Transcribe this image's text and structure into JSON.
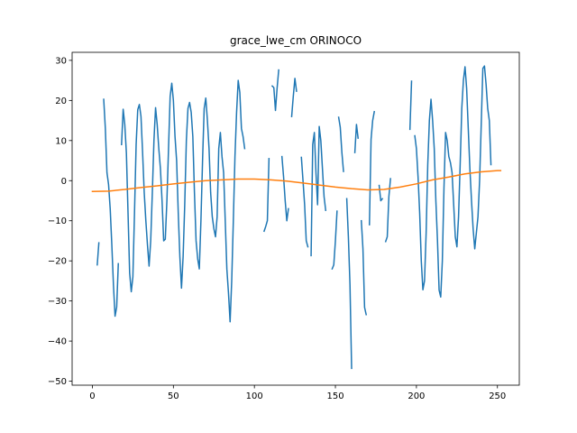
{
  "chart_data": {
    "type": "line",
    "title": "grace_lwe_cm ORINOCO",
    "xlabel": "",
    "ylabel": "",
    "xlim": [
      -12.5,
      263.5
    ],
    "ylim": [
      -51,
      32
    ],
    "xticks": [
      0,
      50,
      100,
      150,
      200,
      250
    ],
    "yticks": [
      -50,
      -40,
      -30,
      -20,
      -10,
      0,
      10,
      20,
      30
    ],
    "grid": false,
    "legend": "none",
    "series": [
      {
        "color": "#1f77b4",
        "segments": [
          [
            [
              3,
              -21
            ],
            [
              4,
              -15.5
            ]
          ],
          [
            [
              7,
              20.3
            ],
            [
              8,
              13
            ],
            [
              9,
              2
            ],
            [
              10,
              -1
            ],
            [
              11,
              -7
            ],
            [
              12,
              -16
            ],
            [
              13,
              -26
            ],
            [
              14,
              -33.8
            ],
            [
              15,
              -31.5
            ],
            [
              16,
              -20.7
            ]
          ],
          [
            [
              18,
              9
            ],
            [
              19,
              17.8
            ],
            [
              20,
              14
            ],
            [
              21,
              6.8
            ],
            [
              22,
              -8
            ],
            [
              23,
              -23
            ],
            [
              24,
              -27.7
            ],
            [
              25,
              -24
            ],
            [
              26,
              -8
            ],
            [
              27,
              9
            ],
            [
              28,
              17.7
            ],
            [
              29,
              19
            ],
            [
              30,
              16
            ],
            [
              31,
              7
            ],
            [
              32,
              -3
            ],
            [
              33,
              -10
            ],
            [
              34,
              -16
            ],
            [
              35,
              -21.3
            ],
            [
              36,
              -15
            ],
            [
              37,
              -3
            ],
            [
              38,
              10
            ],
            [
              39,
              18.2
            ],
            [
              40,
              14
            ],
            [
              41,
              8
            ],
            [
              42,
              3
            ],
            [
              43,
              -5
            ],
            [
              44,
              -15
            ],
            [
              45,
              -14.6
            ],
            [
              46,
              -5
            ],
            [
              47,
              8
            ],
            [
              48,
              21
            ],
            [
              49,
              24.3
            ],
            [
              50,
              20
            ],
            [
              51,
              11
            ],
            [
              52,
              5
            ],
            [
              53,
              -8
            ],
            [
              54,
              -19
            ],
            [
              55,
              -26.8
            ],
            [
              56,
              -19
            ],
            [
              57,
              -6
            ],
            [
              58,
              10
            ],
            [
              59,
              18
            ],
            [
              60,
              19.5
            ],
            [
              61,
              17
            ],
            [
              62,
              11
            ],
            [
              63,
              -3
            ],
            [
              64,
              -15
            ],
            [
              65,
              -19.5
            ],
            [
              66,
              -22
            ],
            [
              67,
              -10
            ],
            [
              68,
              5
            ],
            [
              69,
              18
            ],
            [
              70,
              20.6
            ],
            [
              71,
              15
            ],
            [
              72,
              8
            ],
            [
              73,
              -3
            ],
            [
              74,
              -9
            ],
            [
              75,
              -12
            ],
            [
              76,
              -14
            ],
            [
              77,
              -9
            ],
            [
              78,
              8
            ],
            [
              79,
              12
            ],
            [
              80,
              6
            ],
            [
              81,
              2
            ],
            [
              82,
              -10
            ],
            [
              83,
              -22
            ],
            [
              84,
              -28
            ],
            [
              85,
              -35.2
            ],
            [
              86,
              -25
            ],
            [
              87,
              -10
            ],
            [
              88,
              6
            ],
            [
              89,
              17
            ],
            [
              90,
              25
            ],
            [
              91,
              22
            ],
            [
              92,
              13
            ],
            [
              93,
              11
            ],
            [
              94,
              8
            ]
          ],
          [
            [
              106,
              -12.6
            ],
            [
              107,
              -11.4
            ],
            [
              108,
              -10
            ],
            [
              109,
              5.5
            ]
          ],
          [
            [
              111,
              23.6
            ],
            [
              112,
              23.2
            ],
            [
              113,
              17.5
            ],
            [
              114,
              23
            ],
            [
              115,
              27.6
            ]
          ],
          [
            [
              117,
              6
            ],
            [
              118,
              1
            ],
            [
              119,
              -5
            ],
            [
              120,
              -10
            ],
            [
              121,
              -7
            ]
          ],
          [
            [
              123,
              16
            ],
            [
              124,
              21
            ],
            [
              125,
              25.5
            ],
            [
              126,
              22.3
            ]
          ],
          [
            [
              129,
              5.8
            ],
            [
              130,
              0
            ],
            [
              131,
              -6
            ],
            [
              132,
              -15
            ],
            [
              133,
              -16.5
            ]
          ],
          [
            [
              135,
              -18.7
            ],
            [
              136,
              9
            ],
            [
              137,
              12
            ],
            [
              138,
              2
            ],
            [
              139,
              -6
            ],
            [
              140,
              13.5
            ],
            [
              141,
              10
            ],
            [
              142,
              3
            ],
            [
              143,
              -4
            ],
            [
              144,
              -7.4
            ]
          ],
          [
            [
              148,
              -22
            ],
            [
              149,
              -21
            ],
            [
              150,
              -15
            ],
            [
              151,
              -7.6
            ]
          ],
          [
            [
              152,
              15.8
            ],
            [
              153,
              13.3
            ],
            [
              154,
              7
            ],
            [
              155,
              2.3
            ]
          ],
          [
            [
              157,
              -4.5
            ],
            [
              158,
              -14
            ],
            [
              159,
              -26
            ],
            [
              160,
              -46.8
            ]
          ],
          [
            [
              162,
              7
            ],
            [
              163,
              14
            ],
            [
              164,
              10.6
            ]
          ],
          [
            [
              166,
              -10
            ],
            [
              167,
              -17
            ],
            [
              168,
              -31.6
            ],
            [
              169,
              -33.4
            ]
          ],
          [
            [
              171,
              -11
            ],
            [
              172,
              10.3
            ],
            [
              173,
              15
            ],
            [
              174,
              17.2
            ]
          ],
          [
            [
              177,
              -1.2
            ],
            [
              178,
              -5
            ],
            [
              179,
              -4.5
            ]
          ],
          [
            [
              181,
              -15.2
            ],
            [
              182,
              -14
            ],
            [
              183,
              -4
            ],
            [
              184,
              0.5
            ]
          ],
          [
            [
              196,
              12.8
            ],
            [
              197,
              24.8
            ]
          ],
          [
            [
              199,
              11.2
            ],
            [
              200,
              8
            ],
            [
              201,
              1
            ],
            [
              202,
              -8
            ],
            [
              203,
              -20
            ],
            [
              204,
              -27.2
            ],
            [
              205,
              -25
            ],
            [
              206,
              -13
            ],
            [
              207,
              4
            ],
            [
              208,
              15
            ],
            [
              209,
              20.3
            ],
            [
              210,
              15
            ],
            [
              211,
              8
            ],
            [
              212,
              -5
            ],
            [
              213,
              -15
            ],
            [
              214,
              -27.3
            ],
            [
              215,
              -29
            ],
            [
              216,
              -20
            ],
            [
              217,
              -2
            ],
            [
              218,
              12
            ],
            [
              219,
              10
            ],
            [
              220,
              6
            ],
            [
              221,
              4.5
            ],
            [
              222,
              2
            ],
            [
              223,
              -6
            ],
            [
              224,
              -14
            ],
            [
              225,
              -16.5
            ],
            [
              226,
              -9
            ],
            [
              227,
              4
            ],
            [
              228,
              18
            ],
            [
              229,
              25
            ],
            [
              230,
              28.4
            ],
            [
              231,
              23
            ],
            [
              232,
              13
            ],
            [
              233,
              3
            ],
            [
              234,
              -5
            ],
            [
              235,
              -12
            ],
            [
              236,
              -17
            ],
            [
              237,
              -13
            ],
            [
              238,
              -9
            ],
            [
              239,
              0
            ],
            [
              240,
              14
            ],
            [
              241,
              28
            ],
            [
              242,
              28.6
            ],
            [
              243,
              24
            ],
            [
              244,
              18
            ],
            [
              245,
              15
            ],
            [
              246,
              4
            ]
          ]
        ]
      },
      {
        "color": "#ff7f0e",
        "segments": [
          [
            [
              0,
              -2.7
            ],
            [
              10,
              -2.6
            ],
            [
              20,
              -2.2
            ],
            [
              30,
              -1.7
            ],
            [
              40,
              -1.3
            ],
            [
              50,
              -0.8
            ],
            [
              60,
              -0.4
            ],
            [
              70,
              0.0
            ],
            [
              80,
              0.2
            ],
            [
              90,
              0.4
            ],
            [
              100,
              0.4
            ],
            [
              110,
              0.2
            ],
            [
              120,
              -0.1
            ],
            [
              130,
              -0.6
            ],
            [
              140,
              -1.1
            ],
            [
              150,
              -1.6
            ],
            [
              160,
              -2.0
            ],
            [
              170,
              -2.3
            ],
            [
              180,
              -2.2
            ],
            [
              190,
              -1.6
            ],
            [
              200,
              -0.8
            ],
            [
              210,
              0.2
            ],
            [
              220,
              0.9
            ],
            [
              230,
              1.7
            ],
            [
              240,
              2.2
            ],
            [
              250,
              2.5
            ],
            [
              252,
              2.5
            ]
          ]
        ]
      }
    ]
  }
}
